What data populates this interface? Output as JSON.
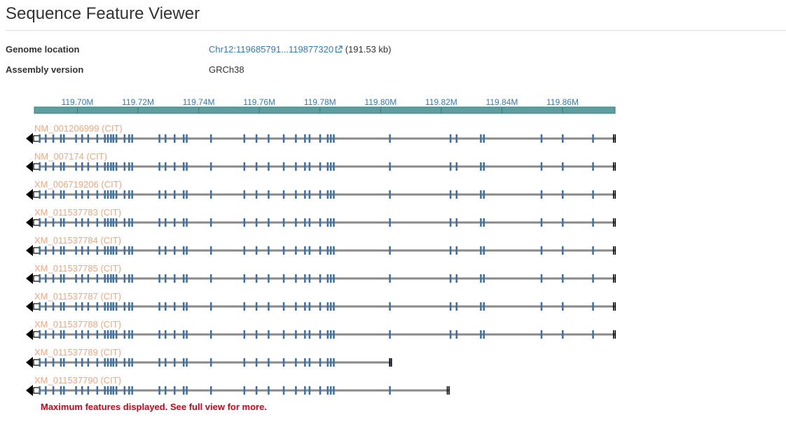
{
  "page": {
    "title": "Sequence Feature Viewer"
  },
  "info": {
    "genome_location_label": "Genome location",
    "genome_location_link": "Chr12:119685791...119877320",
    "genome_location_size": "(191.53 kb)",
    "assembly_label": "Assembly version",
    "assembly_value": "GRCh38"
  },
  "colors": {
    "ruler_fill": "#5f9ea0",
    "ruler_border": "#2e7d7f",
    "tick_label": "#337ab7",
    "exon": "#3a6fa8",
    "intron_line": "#888888",
    "track_label": "#f0a77c",
    "warning": "#d0021b"
  },
  "ruler": {
    "start": 119685791,
    "end": 119877320,
    "ticks": [
      {
        "value": 119700000,
        "label": "119.70M"
      },
      {
        "value": 119720000,
        "label": "119.72M"
      },
      {
        "value": 119740000,
        "label": "119.74M"
      },
      {
        "value": 119760000,
        "label": "119.76M"
      },
      {
        "value": 119780000,
        "label": "119.78M"
      },
      {
        "value": 119800000,
        "label": "119.80M"
      },
      {
        "value": 119820000,
        "label": "119.82M"
      },
      {
        "value": 119840000,
        "label": "119.84M"
      },
      {
        "value": 119860000,
        "label": "119.86M"
      }
    ]
  },
  "tracks": [
    {
      "label": "NM_001206999 (CIT)",
      "strand": "-",
      "end": 119877320
    },
    {
      "label": "NM_007174 (CIT)",
      "strand": "-",
      "end": 119877320
    },
    {
      "label": "XM_006719206 (CIT)",
      "strand": "-",
      "end": 119877320
    },
    {
      "label": "XM_011537783 (CIT)",
      "strand": "-",
      "end": 119877320
    },
    {
      "label": "XM_011537784 (CIT)",
      "strand": "-",
      "end": 119877320
    },
    {
      "label": "XM_011537785 (CIT)",
      "strand": "-",
      "end": 119877320
    },
    {
      "label": "XM_011537787 (CIT)",
      "strand": "-",
      "end": 119877320
    },
    {
      "label": "XM_011537788 (CIT)",
      "strand": "-",
      "end": 119877320
    },
    {
      "label": "XM_011537789 (CIT)",
      "strand": "-",
      "end": 119803500
    },
    {
      "label": "XM_011537790 (CIT)",
      "strand": "-",
      "end": 119822500
    }
  ],
  "exons": [
    119687500,
    119689500,
    119692000,
    119694500,
    119695500,
    119699500,
    119701500,
    119703500,
    119706500,
    119709000,
    119710000,
    119711000,
    119711800,
    119712800,
    119715500,
    119717000,
    119718000,
    119727000,
    119729000,
    119732000,
    119735000,
    119736000,
    119744000,
    119755000,
    119759000,
    119763000,
    119768000,
    119772000,
    119775000,
    119776500,
    119780000,
    119782500,
    119783500,
    119784500,
    119803000,
    119823000,
    119825000,
    119833000,
    119834000,
    119853000,
    119860000,
    119870000
  ],
  "warning": "Maximum features displayed. See full view for more."
}
